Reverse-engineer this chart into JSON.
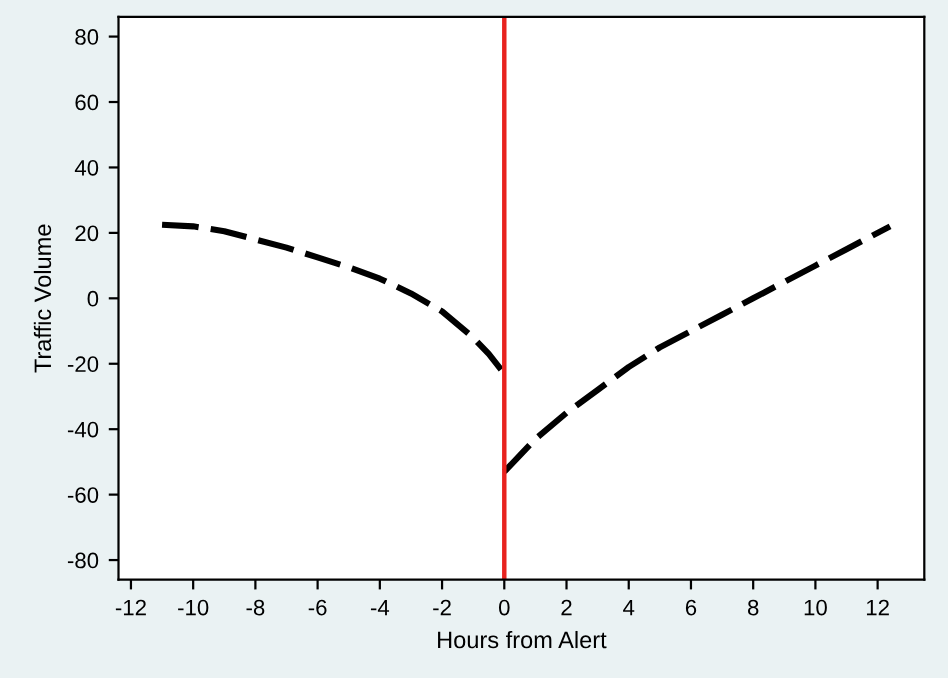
{
  "chart_data": {
    "type": "line",
    "xlabel": "Hours from Alert",
    "ylabel": "Traffic Volume",
    "series": [
      {
        "x": [
          -11,
          -10,
          -9,
          -8,
          -7,
          -6,
          -5,
          -4,
          -3,
          -2,
          -1,
          -0.5,
          0
        ],
        "values": [
          22.5,
          22,
          20.5,
          18,
          15.5,
          12.5,
          9.5,
          6,
          1.5,
          -4,
          -12,
          -17,
          -23
        ],
        "color": "#000000"
      },
      {
        "x": [
          0,
          0.5,
          1,
          2,
          3,
          4,
          5,
          6,
          7,
          8,
          9,
          10,
          11,
          12,
          12.4
        ],
        "values": [
          -53,
          -48,
          -43,
          -35,
          -28,
          -21,
          -15,
          -10,
          -5,
          0,
          5,
          10,
          15,
          20,
          22
        ],
        "color": "#000000"
      }
    ],
    "xlim": [
      -12.4,
      13.5
    ],
    "xticks": [
      -12,
      -10,
      -8,
      -6,
      -4,
      -2,
      0,
      2,
      4,
      6,
      8,
      10,
      12
    ],
    "ylim": [
      -86,
      86
    ],
    "yticks": [
      -80,
      -60,
      -40,
      -20,
      0,
      20,
      40,
      60,
      80
    ],
    "ref_lines": [
      {
        "axis": "x",
        "value": 0,
        "color": "#e8231f",
        "line_style": "solid"
      }
    ],
    "line_style": "dashed",
    "marker": "none",
    "grid": false,
    "legend": false
  }
}
